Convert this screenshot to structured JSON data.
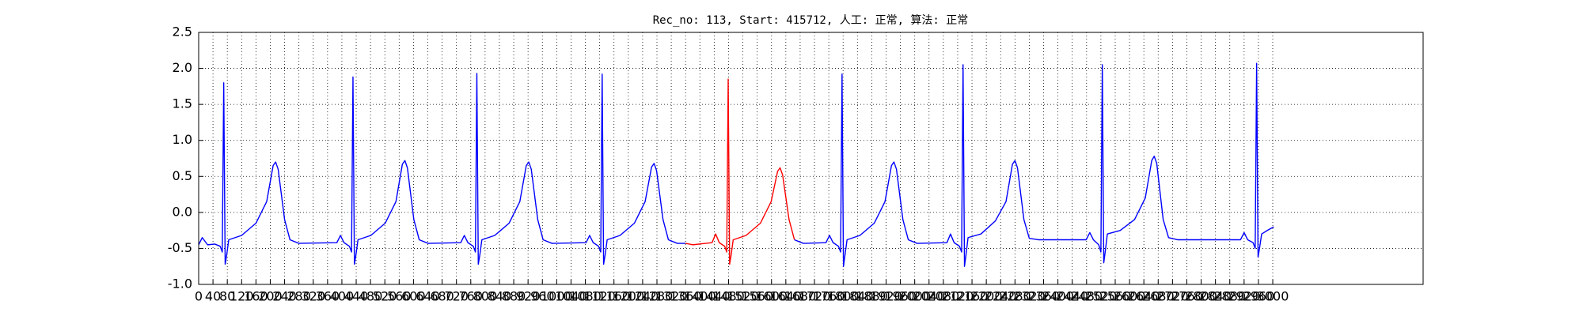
{
  "chart_data": {
    "type": "line",
    "title": "Rec_no: 113, Start: 415712, 人工: 正常, 算法: 正常",
    "xlim": [
      0,
      3420
    ],
    "ylim": [
      -1.0,
      2.5
    ],
    "xticks": [
      0,
      40,
      80,
      120,
      160,
      200,
      240,
      280,
      320,
      360,
      400,
      440,
      480,
      520,
      560,
      600,
      640,
      680,
      720,
      760,
      800,
      840,
      880,
      920,
      960,
      1000,
      1040,
      1080,
      1120,
      1160,
      1200,
      1240,
      1280,
      1320,
      1360,
      1400,
      1440,
      1480,
      1520,
      1560,
      1600,
      1640,
      1680,
      1720,
      1760,
      1800,
      1840,
      1880,
      1920,
      1960,
      2000,
      2040,
      2080,
      2120,
      2160,
      2200,
      2240,
      2280,
      2320,
      2360,
      2400,
      2440,
      2480,
      2520,
      2560,
      2600,
      2640,
      2680,
      2720,
      2760,
      2800,
      2840,
      2880,
      2920,
      2960,
      3000
    ],
    "yticks": [
      {
        "value": -1.0,
        "label": "-1.0"
      },
      -0.5,
      {
        "value": 0.0,
        "label": "0.0"
      },
      0.5,
      {
        "value": 1.0,
        "label": "1.0"
      },
      1.5,
      {
        "value": 2.0,
        "label": "2.0"
      },
      2.5
    ],
    "grid": true,
    "x": [
      0,
      10,
      25,
      45,
      60,
      66,
      70,
      74,
      78,
      84,
      120,
      160,
      190,
      208,
      215,
      222,
      240,
      255,
      280,
      386,
      396,
      406,
      421,
      427,
      431,
      435,
      439,
      445,
      481,
      521,
      551,
      569,
      576,
      583,
      601,
      616,
      641,
      732,
      742,
      752,
      767,
      773,
      777,
      781,
      785,
      791,
      827,
      867,
      897,
      915,
      922,
      929,
      947,
      962,
      987,
      1082,
      1092,
      1102,
      1117,
      1123,
      1127,
      1131,
      1135,
      1141,
      1177,
      1217,
      1247,
      1265,
      1272,
      1279,
      1297,
      1312,
      1337,
      1360,
      1380,
      1434,
      1444,
      1454,
      1469,
      1475,
      1479,
      1483,
      1487,
      1493,
      1529,
      1569,
      1599,
      1617,
      1624,
      1631,
      1649,
      1664,
      1689,
      1752,
      1762,
      1772,
      1787,
      1793,
      1797,
      1801,
      1805,
      1811,
      1847,
      1887,
      1917,
      1935,
      1942,
      1949,
      1967,
      1982,
      2007,
      2090,
      2100,
      2110,
      2125,
      2131,
      2135,
      2139,
      2143,
      2149,
      2185,
      2225,
      2255,
      2273,
      2280,
      2287,
      2305,
      2320,
      2345,
      2479,
      2489,
      2499,
      2514,
      2520,
      2524,
      2528,
      2532,
      2538,
      2574,
      2614,
      2644,
      2662,
      2669,
      2676,
      2694,
      2709,
      2734,
      2910,
      2920,
      2930,
      2945,
      2951,
      2955,
      2959,
      2963,
      2969,
      2985,
      3003
    ],
    "series": [
      {
        "color": "#0000ff",
        "values": [
          -0.45,
          -0.35,
          -0.45,
          -0.44,
          -0.47,
          -0.55,
          1.8,
          -0.72,
          -0.6,
          -0.38,
          -0.32,
          -0.15,
          0.15,
          0.65,
          0.7,
          0.6,
          -0.1,
          -0.38,
          -0.43,
          -0.42,
          -0.32,
          -0.42,
          -0.47,
          -0.55,
          1.88,
          -0.72,
          -0.6,
          -0.38,
          -0.32,
          -0.15,
          0.15,
          0.67,
          0.72,
          0.62,
          -0.1,
          -0.38,
          -0.43,
          -0.42,
          -0.32,
          -0.42,
          -0.47,
          -0.55,
          1.93,
          -0.72,
          -0.6,
          -0.38,
          -0.32,
          -0.15,
          0.15,
          0.65,
          0.7,
          0.6,
          -0.1,
          -0.38,
          -0.43,
          -0.42,
          -0.32,
          -0.42,
          -0.47,
          -0.55,
          1.92,
          -0.72,
          -0.6,
          -0.38,
          -0.32,
          -0.15,
          0.15,
          0.63,
          0.68,
          0.58,
          -0.1,
          -0.38,
          -0.43,
          -0.43,
          null,
          null,
          null,
          null,
          null,
          null,
          null,
          null,
          null,
          null,
          null,
          null,
          null,
          null,
          null,
          null,
          null,
          -0.38,
          -0.43,
          -0.42,
          -0.32,
          -0.42,
          -0.47,
          -0.55,
          1.92,
          -0.75,
          -0.6,
          -0.38,
          -0.32,
          -0.15,
          0.15,
          0.65,
          0.7,
          0.6,
          -0.1,
          -0.38,
          -0.43,
          -0.42,
          -0.3,
          -0.42,
          -0.47,
          -0.55,
          2.05,
          -0.75,
          -0.6,
          -0.35,
          -0.3,
          -0.12,
          0.15,
          0.67,
          0.72,
          0.62,
          -0.1,
          -0.36,
          -0.38,
          -0.38,
          -0.28,
          -0.38,
          -0.45,
          -0.55,
          2.05,
          -0.7,
          -0.55,
          -0.3,
          -0.25,
          -0.1,
          0.2,
          0.72,
          0.78,
          0.68,
          -0.1,
          -0.35,
          -0.38,
          -0.38,
          -0.28,
          -0.38,
          -0.42,
          -0.5,
          2.07,
          -0.62,
          -0.5,
          -0.3,
          -0.25,
          -0.2
        ]
      },
      {
        "color": "#ff0000",
        "values": [
          null,
          null,
          null,
          null,
          null,
          null,
          null,
          null,
          null,
          null,
          null,
          null,
          null,
          null,
          null,
          null,
          null,
          null,
          null,
          null,
          null,
          null,
          null,
          null,
          null,
          null,
          null,
          null,
          null,
          null,
          null,
          null,
          null,
          null,
          null,
          null,
          null,
          null,
          null,
          null,
          null,
          null,
          null,
          null,
          null,
          null,
          null,
          null,
          null,
          null,
          null,
          null,
          null,
          null,
          null,
          null,
          null,
          null,
          null,
          null,
          null,
          null,
          null,
          null,
          null,
          null,
          null,
          null,
          null,
          null,
          null,
          null,
          null,
          -0.43,
          -0.45,
          -0.42,
          -0.3,
          -0.42,
          -0.47,
          -0.55,
          1.85,
          -0.72,
          -0.6,
          -0.38,
          -0.32,
          -0.15,
          0.15,
          0.57,
          0.62,
          0.52,
          -0.1,
          -0.38,
          null,
          null,
          null,
          null,
          null,
          null,
          null,
          null,
          null,
          null,
          null,
          null,
          null,
          null,
          null,
          null,
          null,
          null,
          null,
          null,
          null,
          null,
          null,
          null,
          null,
          null,
          null,
          null,
          null,
          null,
          null,
          null,
          null,
          null,
          null,
          null,
          null,
          null,
          null,
          null,
          null,
          null,
          null,
          null,
          null,
          null,
          null,
          null,
          null,
          null,
          null,
          null,
          null,
          null,
          null,
          null,
          null,
          null,
          null,
          null,
          null,
          null,
          null,
          null,
          null,
          null
        ]
      }
    ]
  }
}
